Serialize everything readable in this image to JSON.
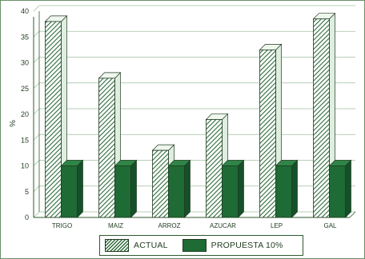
{
  "chart_data": {
    "type": "bar",
    "categories": [
      "TRIGO",
      "MAIZ",
      "ARROZ",
      "AZUCAR",
      "LEP",
      "GAL"
    ],
    "series": [
      {
        "name": "ACTUAL",
        "values": [
          38,
          27,
          13,
          19,
          32.5,
          38.5
        ]
      },
      {
        "name": "PROPUESTA 10%",
        "values": [
          10,
          10,
          10,
          10,
          10,
          10
        ]
      }
    ],
    "ylabel": "%",
    "xlabel": "",
    "ylim": [
      0,
      40
    ],
    "yticks": [
      0,
      5,
      10,
      15,
      20,
      25,
      30,
      35,
      40
    ],
    "grid": true,
    "legend_position": "bottom",
    "colors": {
      "actual": "#2e6b3a",
      "propuesta": "#1e6b35",
      "grid": "#9fbf9f",
      "axis": "#2f5a2f"
    }
  },
  "legend": {
    "actual_label": "ACTUAL",
    "propuesta_label": "PROPUESTA 10%"
  }
}
